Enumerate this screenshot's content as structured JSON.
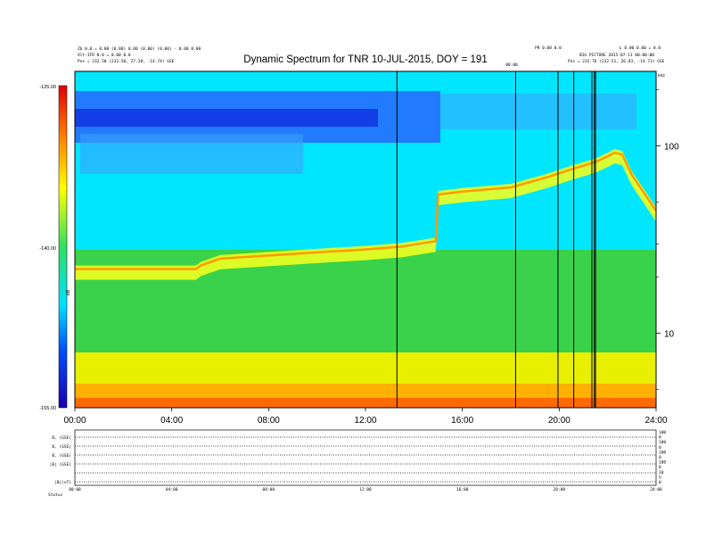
{
  "chart_data": {
    "type": "heatmap",
    "title": "Dynamic Spectrum for TNR 10-JUL-2015, DOY = 191",
    "header_left": [
      "Zb 0.0 = 0.00 (0.00) 0.00 (0.00) (0.00) · 0.00 0.00",
      "Alt-IFR 0.0 = 0.00 0.0",
      "Pos = 232.50 (232.50, 27.20, -14.74) GSE"
    ],
    "header_right": [
      "PR 0.00 0.0",
      "L 0.00 0.00 = 0.0",
      "BIG PICTURE 2015-07-11 00:00:00",
      "Pos = 232.76 (232.51, 26.83, -14.73) GSE"
    ],
    "marker_label": "00:00",
    "colorbar": {
      "max_label": "-125.00",
      "mid_label": "-140.00",
      "min_label": "-155.00",
      "unit": "dB",
      "range": [
        -155,
        -125
      ]
    },
    "x_axis": {
      "ticks": [
        "00:00",
        "04:00",
        "08:00",
        "12:00",
        "16:00",
        "20:00",
        "24:00"
      ],
      "range_hours": [
        0,
        24
      ]
    },
    "y_axis_right": {
      "unit": "kHz",
      "ticks": [
        "100",
        "10"
      ],
      "range_khz": [
        4,
        250
      ],
      "scale": "log"
    },
    "vertical_markers_hours": [
      13.3,
      18.2,
      19.95,
      20.6,
      21.35,
      21.45,
      21.5
    ],
    "emission_bands": [
      {
        "name": "plasma line",
        "points_hours_khz": [
          [
            0,
            22
          ],
          [
            1,
            22
          ],
          [
            5,
            22
          ],
          [
            5.2,
            23
          ],
          [
            6,
            25
          ],
          [
            7,
            25.5
          ],
          [
            8,
            26
          ],
          [
            10,
            27
          ],
          [
            12,
            28
          ],
          [
            13.5,
            29
          ],
          [
            14.9,
            31
          ],
          [
            15,
            55
          ],
          [
            16,
            57
          ],
          [
            18,
            60
          ],
          [
            19.5,
            68
          ],
          [
            20.5,
            75
          ],
          [
            21.5,
            82
          ],
          [
            22,
            88
          ],
          [
            22.3,
            92
          ],
          [
            22.6,
            90
          ],
          [
            23,
            70
          ],
          [
            24,
            45
          ]
        ]
      }
    ],
    "bottom_panels": {
      "rows": [
        "B, (GSE)",
        "B, (GSE)",
        "B, (GSE)",
        "|B| (GSE)",
        "",
        "|B|(nT)"
      ],
      "right_ticks": [
        "100",
        "0",
        "100",
        "0",
        "100",
        "0",
        "100",
        "0",
        "10",
        "5",
        "0"
      ],
      "x_ticks": [
        "00:00",
        "04:00",
        "08:00",
        "12:00",
        "16:00",
        "20:00",
        "24:00"
      ],
      "footer": "Status"
    }
  }
}
